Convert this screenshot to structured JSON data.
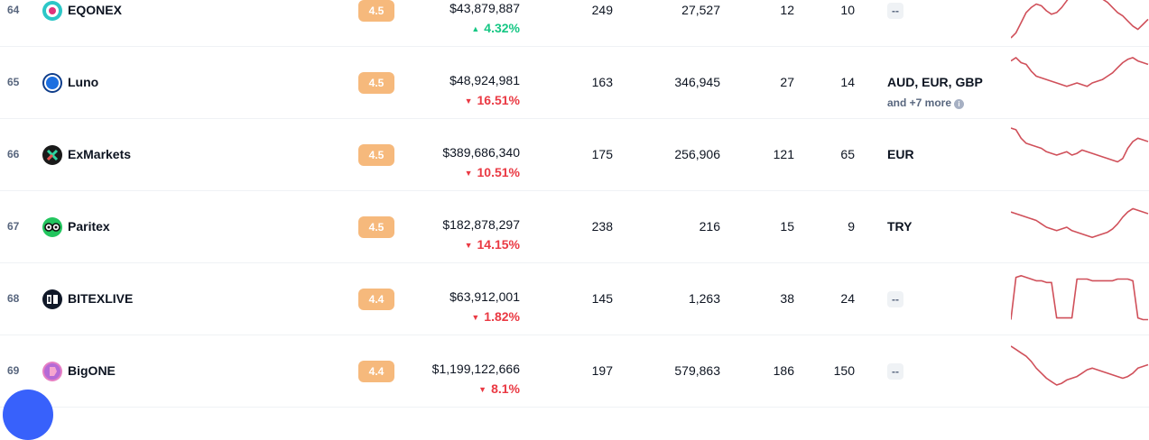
{
  "colors": {
    "up": "#16c784",
    "down": "#ea3943",
    "score_badge": "#f6b97c",
    "sparkline": "#d0505a",
    "fab": "#3861fb"
  },
  "rows": [
    {
      "rank": "64",
      "name": "EQONEX",
      "logo": "eqonex-logo-icon",
      "score": "4.5",
      "volume": "$43,879,887",
      "change": "4.32%",
      "direction": "up",
      "markets": "249",
      "coins": "27,527",
      "pairs": "12",
      "fiat_count": "10",
      "fiat_main": "--",
      "fiat_more": "",
      "has_fiat": false,
      "spark": [
        0,
        6,
        18,
        30,
        36,
        40,
        38,
        32,
        28,
        30,
        36,
        44,
        52,
        56,
        60,
        58,
        56,
        50,
        46,
        42,
        36,
        30,
        26,
        20,
        14,
        10,
        16,
        22
      ]
    },
    {
      "rank": "65",
      "name": "Luno",
      "logo": "luno-logo-icon",
      "score": "4.5",
      "volume": "$48,924,981",
      "change": "16.51%",
      "direction": "down",
      "markets": "163",
      "coins": "346,945",
      "pairs": "27",
      "fiat_count": "14",
      "fiat_main": "AUD, EUR, GBP",
      "fiat_more": "and +7 more",
      "has_fiat": true,
      "spark": [
        58,
        62,
        56,
        54,
        46,
        40,
        38,
        36,
        34,
        32,
        30,
        28,
        30,
        32,
        30,
        28,
        32,
        34,
        36,
        40,
        44,
        50,
        56,
        60,
        62,
        58,
        56,
        54
      ]
    },
    {
      "rank": "66",
      "name": "ExMarkets",
      "logo": "exmarkets-logo-icon",
      "score": "4.5",
      "volume": "$389,686,340",
      "change": "10.51%",
      "direction": "down",
      "markets": "175",
      "coins": "256,906",
      "pairs": "121",
      "fiat_count": "65",
      "fiat_main": "EUR",
      "fiat_more": "",
      "has_fiat": true,
      "spark": [
        64,
        62,
        52,
        46,
        44,
        42,
        40,
        36,
        34,
        32,
        34,
        36,
        32,
        34,
        38,
        36,
        34,
        32,
        30,
        28,
        26,
        24,
        28,
        40,
        48,
        52,
        50,
        48
      ]
    },
    {
      "rank": "67",
      "name": "Paritex",
      "logo": "paritex-logo-icon",
      "score": "4.5",
      "volume": "$182,878,297",
      "change": "14.15%",
      "direction": "down",
      "markets": "238",
      "coins": "216",
      "pairs": "15",
      "fiat_count": "9",
      "fiat_main": "TRY",
      "fiat_more": "",
      "has_fiat": true,
      "spark": [
        50,
        48,
        46,
        44,
        42,
        40,
        36,
        32,
        30,
        28,
        30,
        32,
        28,
        26,
        24,
        22,
        20,
        22,
        24,
        26,
        30,
        36,
        44,
        50,
        54,
        52,
        50,
        48
      ]
    },
    {
      "rank": "68",
      "name": "BITEXLIVE",
      "logo": "bitexlive-logo-icon",
      "score": "4.4",
      "volume": "$63,912,001",
      "change": "1.82%",
      "direction": "down",
      "markets": "145",
      "coins": "1,263",
      "pairs": "38",
      "fiat_count": "24",
      "fiat_main": "--",
      "fiat_more": "",
      "has_fiat": false,
      "spark": [
        8,
        58,
        60,
        58,
        56,
        54,
        54,
        52,
        52,
        10,
        10,
        10,
        10,
        56,
        56,
        56,
        54,
        54,
        54,
        54,
        54,
        56,
        56,
        56,
        54,
        10,
        8,
        8
      ]
    },
    {
      "rank": "69",
      "name": "BigONE",
      "logo": "bigone-logo-icon",
      "score": "4.4",
      "volume": "$1,199,122,666",
      "change": "8.1%",
      "direction": "down",
      "markets": "197",
      "coins": "579,863",
      "pairs": "186",
      "fiat_count": "150",
      "fiat_main": "--",
      "fiat_more": "",
      "has_fiat": false,
      "spark": [
        62,
        58,
        54,
        50,
        44,
        36,
        30,
        24,
        20,
        16,
        18,
        22,
        24,
        26,
        30,
        34,
        36,
        34,
        32,
        30,
        28,
        26,
        24,
        26,
        30,
        36,
        38,
        40
      ]
    }
  ],
  "fab": {
    "icon": "chat-fab-icon"
  }
}
